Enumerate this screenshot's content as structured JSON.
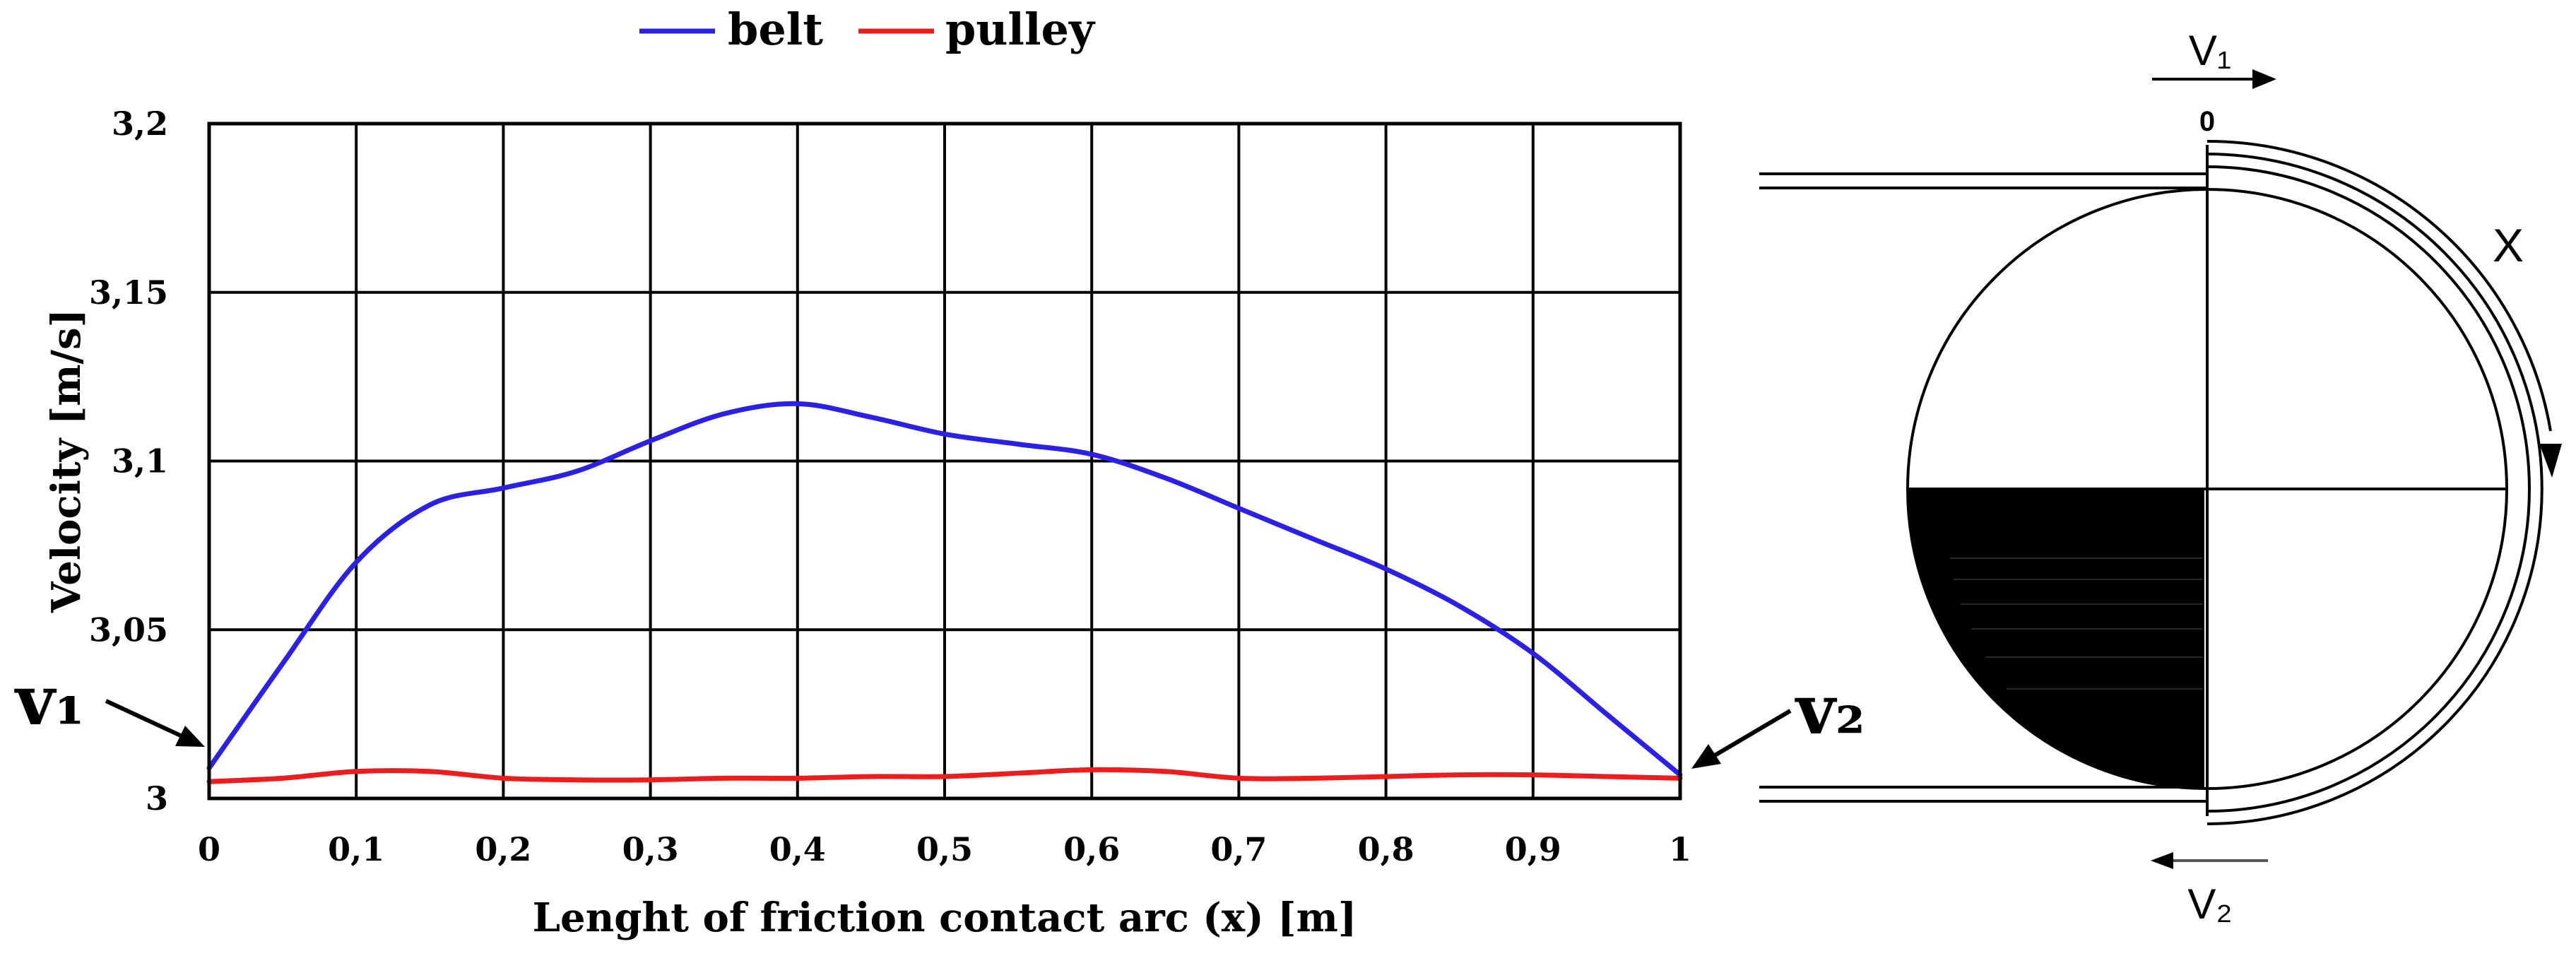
{
  "chart_data": {
    "type": "line",
    "xlabel": "Lenght of friction contact arc (x) [m]",
    "ylabel": "Velocity [m/s]",
    "xlim": [
      0,
      1
    ],
    "ylim": [
      3,
      3.2
    ],
    "x_ticks": [
      0,
      0.1,
      0.2,
      0.3,
      0.4,
      0.5,
      0.6,
      0.7,
      0.8,
      0.9,
      1
    ],
    "x_tick_labels": [
      "0",
      "0,1",
      "0,2",
      "0,3",
      "0,4",
      "0,5",
      "0,6",
      "0,7",
      "0,8",
      "0,9",
      "1"
    ],
    "y_ticks": [
      3,
      3.05,
      3.1,
      3.15,
      3.2
    ],
    "y_tick_labels": [
      "3",
      "3,05",
      "3,1",
      "3,15",
      "3,2"
    ],
    "grid": true,
    "legend_position": "top-center",
    "series": [
      {
        "name": "belt",
        "color": "#2b20e8",
        "x": [
          0,
          0.05,
          0.1,
          0.15,
          0.2,
          0.25,
          0.3,
          0.35,
          0.4,
          0.45,
          0.5,
          0.55,
          0.6,
          0.65,
          0.7,
          0.75,
          0.8,
          0.85,
          0.9,
          0.95,
          1
        ],
        "y": [
          3.009,
          3.04,
          3.07,
          3.087,
          3.092,
          3.097,
          3.106,
          3.114,
          3.117,
          3.113,
          3.108,
          3.105,
          3.102,
          3.095,
          3.086,
          3.077,
          3.068,
          3.057,
          3.043,
          3.025,
          3.007
        ]
      },
      {
        "name": "pulley",
        "color": "#ee1c1c",
        "x": [
          0,
          0.05,
          0.1,
          0.15,
          0.2,
          0.25,
          0.3,
          0.35,
          0.4,
          0.45,
          0.5,
          0.55,
          0.6,
          0.65,
          0.7,
          0.75,
          0.8,
          0.85,
          0.9,
          0.95,
          1
        ],
        "y": [
          3.005,
          3.006,
          3.008,
          3.008,
          3.006,
          3.0055,
          3.0055,
          3.006,
          3.006,
          3.0065,
          3.0065,
          3.0075,
          3.0085,
          3.008,
          3.006,
          3.006,
          3.0065,
          3.007,
          3.007,
          3.0065,
          3.006
        ]
      }
    ],
    "annotations": {
      "left_point_label": "v₁",
      "right_point_label": "v₂"
    }
  },
  "diagram": {
    "top_velocity_label": "V₁",
    "zero_label": "0",
    "arc_label": "X",
    "bottom_velocity_label": "V₂"
  }
}
